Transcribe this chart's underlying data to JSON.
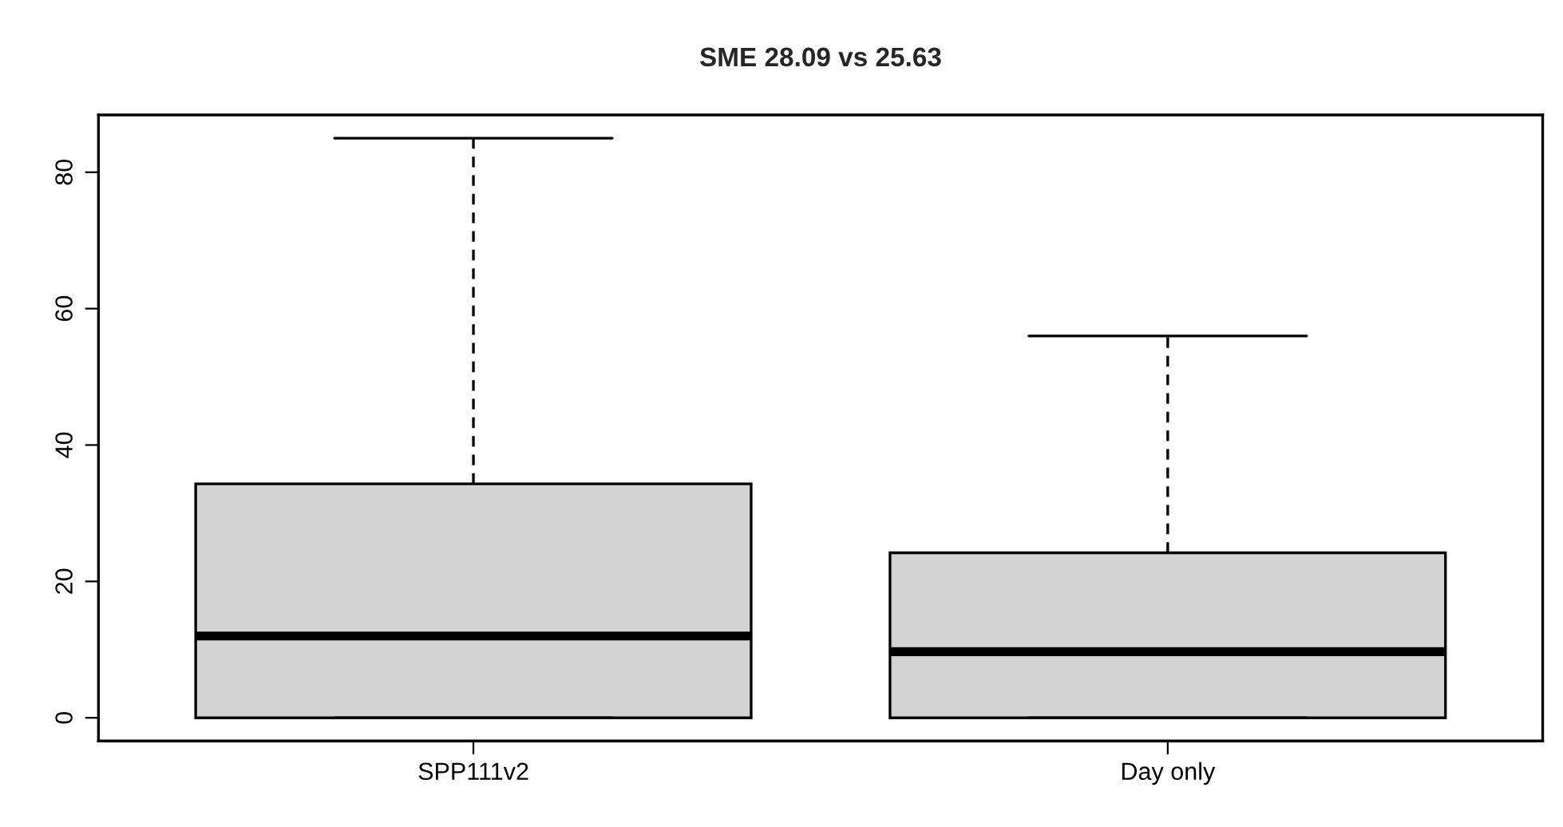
{
  "chart_data": {
    "type": "box",
    "title": "SME 28.09 vs 25.63",
    "categories": [
      "SPP111v2",
      "Day only"
    ],
    "boxes": [
      {
        "low": 0,
        "q1": 0,
        "median": 12,
        "q3": 34.3,
        "high": 85
      },
      {
        "low": 0,
        "q1": 0,
        "median": 9.7,
        "q3": 24.2,
        "high": 56
      }
    ],
    "color": "#d3d3d3",
    "ylim": [
      -3.4,
      88.4
    ],
    "yticks": [
      0,
      20,
      40,
      60,
      80
    ],
    "grid": false,
    "legend": false
  }
}
